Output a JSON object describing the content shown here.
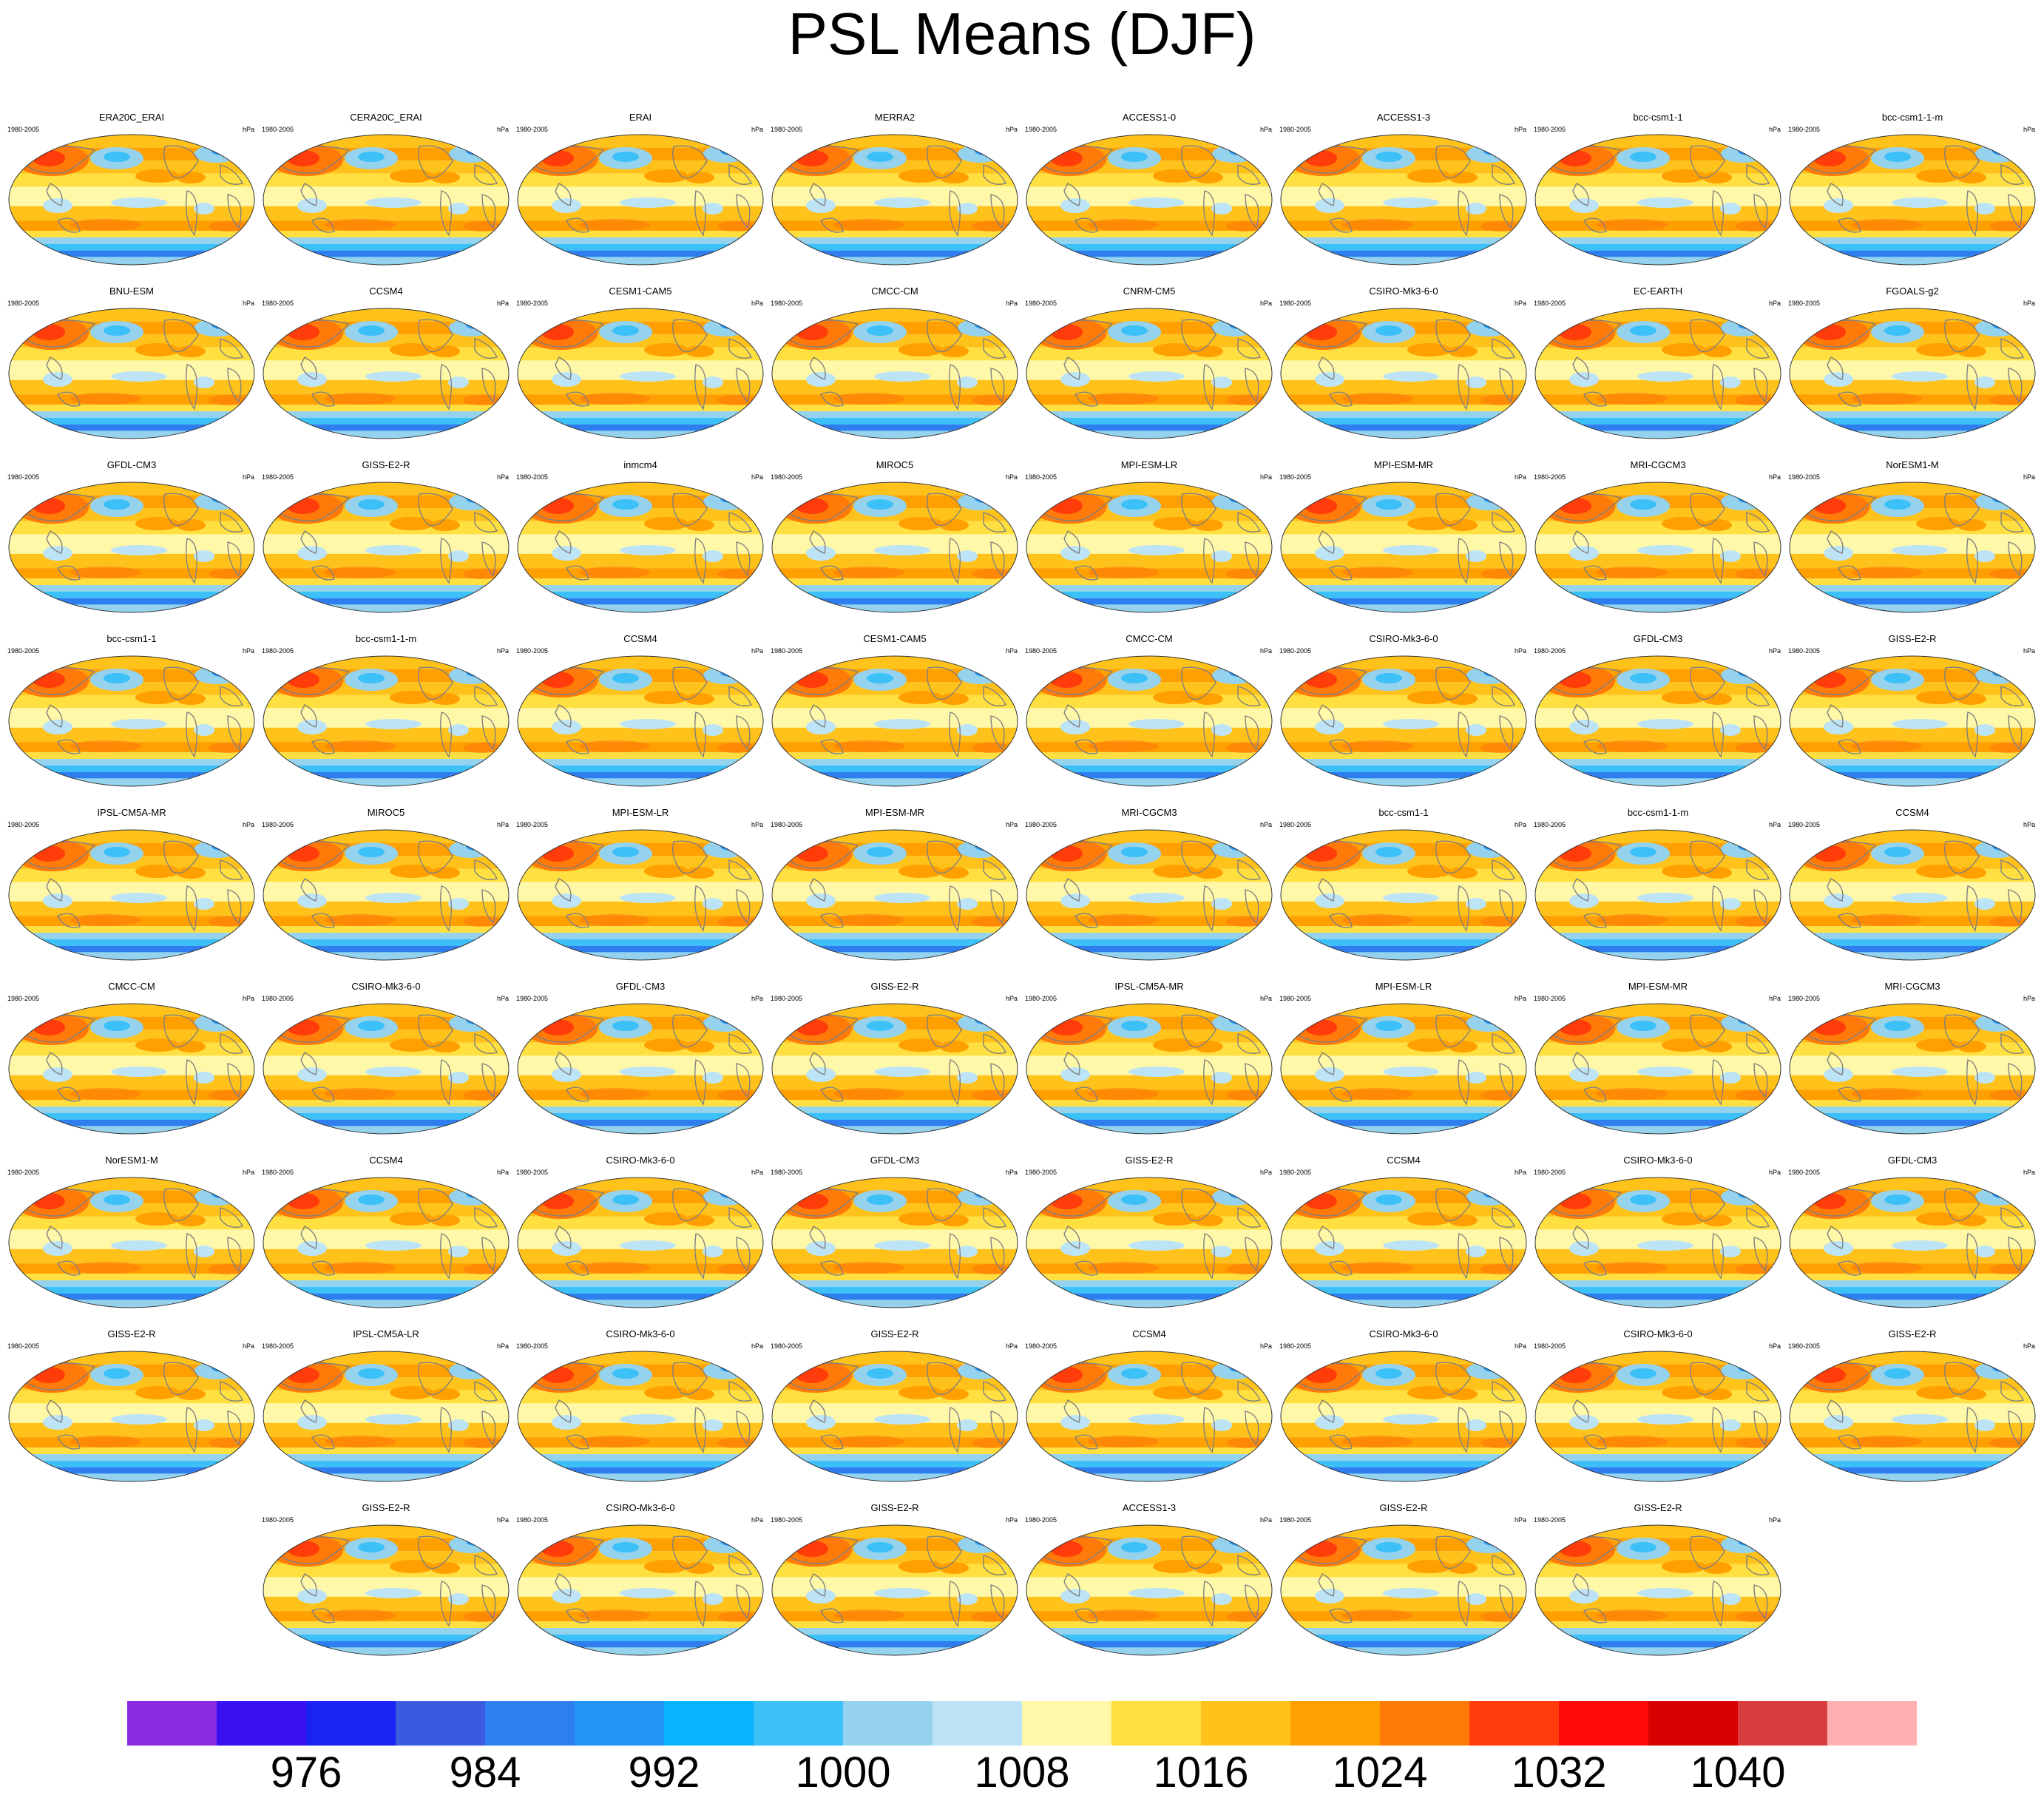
{
  "title": "PSL Means (DJF)",
  "panel_period": "1980-2005",
  "panel_units": "hPa",
  "chart_data": {
    "type": "heatmap",
    "description_variable": "PSL",
    "title": "PSL Means (DJF)",
    "panels": [
      "ERA20C_ERAI",
      "CERA20C_ERAI",
      "ERAI",
      "MERRA2",
      "ACCESS1-0",
      "ACCESS1-3",
      "bcc-csm1-1",
      "bcc-csm1-1-m",
      "BNU-ESM",
      "CCSM4",
      "CESM1-CAM5",
      "CMCC-CM",
      "CNRM-CM5",
      "CSIRO-Mk3-6-0",
      "EC-EARTH",
      "FGOALS-g2",
      "GFDL-CM3",
      "GISS-E2-R",
      "inmcm4",
      "MIROC5",
      "MPI-ESM-LR",
      "MPI-ESM-MR",
      "MRI-CGCM3",
      "NorESM1-M",
      "bcc-csm1-1",
      "bcc-csm1-1-m",
      "CCSM4",
      "CESM1-CAM5",
      "CMCC-CM",
      "CSIRO-Mk3-6-0",
      "GFDL-CM3",
      "GISS-E2-R",
      "IPSL-CM5A-MR",
      "MIROC5",
      "MPI-ESM-LR",
      "MPI-ESM-MR",
      "MRI-CGCM3",
      "bcc-csm1-1",
      "bcc-csm1-1-m",
      "CCSM4",
      "CMCC-CM",
      "CSIRO-Mk3-6-0",
      "GFDL-CM3",
      "GISS-E2-R",
      "IPSL-CM5A-MR",
      "MPI-ESM-LR",
      "MPI-ESM-MR",
      "MRI-CGCM3",
      "NorESM1-M",
      "CCSM4",
      "CSIRO-Mk3-6-0",
      "GFDL-CM3",
      "GISS-E2-R",
      "CCSM4",
      "CSIRO-Mk3-6-0",
      "GFDL-CM3",
      "GISS-E2-R",
      "IPSL-CM5A-LR",
      "CSIRO-Mk3-6-0",
      "GISS-E2-R",
      "CCSM4",
      "CSIRO-Mk3-6-0",
      "CSIRO-Mk3-6-0",
      "GISS-E2-R",
      "GISS-E2-R",
      "CSIRO-Mk3-6-0",
      "GISS-E2-R",
      "ACCESS1-3",
      "GISS-E2-R",
      "GISS-E2-R"
    ],
    "colorbar": {
      "colors": [
        "#8a2be2",
        "#3a10f0",
        "#1a24f2",
        "#3a5ae0",
        "#2f7ef0",
        "#2196f7",
        "#08b4ff",
        "#3cc0f8",
        "#94d2ee",
        "#bde4f6",
        "#fff8a8",
        "#ffe040",
        "#ffc21a",
        "#ffa000",
        "#ff7a08",
        "#ff3c0a",
        "#ff0808",
        "#d80000",
        "#d83c3c",
        "#ffb0b0"
      ],
      "tick_values": [
        976,
        984,
        992,
        1000,
        1008,
        1016,
        1024,
        1032,
        1040
      ],
      "tick_labels": [
        "976",
        "984",
        "992",
        "1000",
        "1008",
        "1016",
        "1024",
        "1032",
        "1040"
      ],
      "range": [
        968,
        1048
      ]
    }
  }
}
